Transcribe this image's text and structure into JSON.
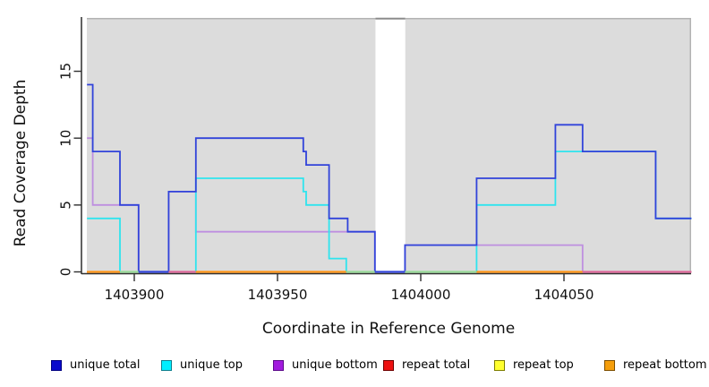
{
  "chart_data": {
    "type": "line",
    "subtype": "step",
    "title": "",
    "xlabel": "Coordinate in Reference Genome",
    "ylabel": "Read Coverage Depth",
    "xlim": [
      1403883.5,
      1404094.5
    ],
    "ylim": [
      0,
      19
    ],
    "x_ticks": [
      1403900,
      1403950,
      1404000,
      1404050
    ],
    "y_ticks": [
      0,
      5,
      10,
      15
    ],
    "grid": "off",
    "legend_position": "bottom",
    "panel_background": "#DCDCDC",
    "panel_border_color": "#b3b3b3",
    "axis_color": "#2f2f2f",
    "no_data_gap": {
      "x_start": 1403984.2,
      "x_end": 1403994.6,
      "cap_color": "#8c8c8c"
    },
    "series": [
      {
        "name": "unique total",
        "z": 6,
        "line_color": "#3143DA",
        "legend_fill": "#0A0ACC",
        "legend_border": "#000080",
        "x_end": 1404094.5,
        "steps": [
          [
            1403883.5,
            14
          ],
          [
            1403885.5,
            9
          ],
          [
            1403895,
            5
          ],
          [
            1403901.5,
            0
          ],
          [
            1403912,
            6
          ],
          [
            1403921.5,
            10
          ],
          [
            1403959,
            9
          ],
          [
            1403960,
            8
          ],
          [
            1403968,
            4
          ],
          [
            1403974.5,
            3
          ],
          [
            1403984,
            0
          ],
          [
            1403994.5,
            2
          ],
          [
            1404019.5,
            7
          ],
          [
            1404047,
            11
          ],
          [
            1404056.5,
            9
          ],
          [
            1404082,
            4
          ]
        ]
      },
      {
        "name": "unique top",
        "z": 5,
        "line_color": "#2EE4EE",
        "legend_fill": "#00EFFF",
        "legend_border": "#0e7f8d",
        "x_end": 1404094.5,
        "steps": [
          [
            1403883.5,
            4
          ],
          [
            1403895,
            0
          ],
          [
            1403921.5,
            7
          ],
          [
            1403959,
            6
          ],
          [
            1403960,
            5
          ],
          [
            1403968,
            1
          ],
          [
            1403974,
            0
          ],
          [
            1404019.5,
            5
          ],
          [
            1404047,
            9
          ],
          [
            1404082,
            4
          ]
        ]
      },
      {
        "name": "unique bottom",
        "z": 4,
        "line_color": "#BE8FE0",
        "legend_fill": "#A21BDE",
        "legend_border": "#5c0a8a",
        "x_end": 1404094.5,
        "steps": [
          [
            1403883.5,
            10
          ],
          [
            1403885.5,
            5
          ],
          [
            1403901.5,
            0
          ],
          [
            1403912,
            6
          ],
          [
            1403921.5,
            3
          ],
          [
            1403984,
            0
          ],
          [
            1403994.5,
            2
          ],
          [
            1404056.5,
            0
          ]
        ]
      },
      {
        "name": "repeat total",
        "z": 2,
        "line_color": "#E01010",
        "legend_fill": "#EE1111",
        "legend_border": "#6e0000",
        "x_end": 1404094.5,
        "steps": [
          [
            1403883.5,
            0
          ]
        ]
      },
      {
        "name": "repeat top",
        "z": 1,
        "line_color": "#F2F22A",
        "legend_fill": "#FFFF2E",
        "legend_border": "#7d7d00",
        "x_end": 1404094.5,
        "steps": [
          [
            1403883.5,
            0
          ]
        ]
      },
      {
        "name": "repeat bottom",
        "z": 3,
        "line_color": "#FF9415",
        "legend_fill": "#F59E0B",
        "legend_border": "#7d4e00",
        "x_end": 1404094.5,
        "steps": [
          [
            1403883.5,
            0
          ]
        ]
      }
    ],
    "baseline_segments": [
      {
        "x_start": 1403883.5,
        "x_end": 1403895,
        "color": "#FF9415"
      },
      {
        "x_start": 1403895,
        "x_end": 1403901.5,
        "color": "#96D996"
      },
      {
        "x_start": 1403901.5,
        "x_end": 1403912,
        "color": "#3143DA"
      },
      {
        "x_start": 1403912,
        "x_end": 1403921.5,
        "color": "#DD6699"
      },
      {
        "x_start": 1403921.5,
        "x_end": 1403974,
        "color": "#FF9415"
      },
      {
        "x_start": 1403974,
        "x_end": 1403984,
        "color": "#96D996"
      },
      {
        "x_start": 1403984,
        "x_end": 1403994.5,
        "color": "#3143DA"
      },
      {
        "x_start": 1403994.5,
        "x_end": 1404019.5,
        "color": "#96D996"
      },
      {
        "x_start": 1404019.5,
        "x_end": 1404056.5,
        "color": "#FF9415"
      },
      {
        "x_start": 1404056.5,
        "x_end": 1404094.5,
        "color": "#DD6699"
      }
    ]
  },
  "legend": {
    "items": [
      {
        "label": "unique total"
      },
      {
        "label": "unique top"
      },
      {
        "label": "unique bottom"
      },
      {
        "label": "repeat total"
      },
      {
        "label": "repeat top"
      },
      {
        "label": "repeat bottom"
      }
    ]
  }
}
